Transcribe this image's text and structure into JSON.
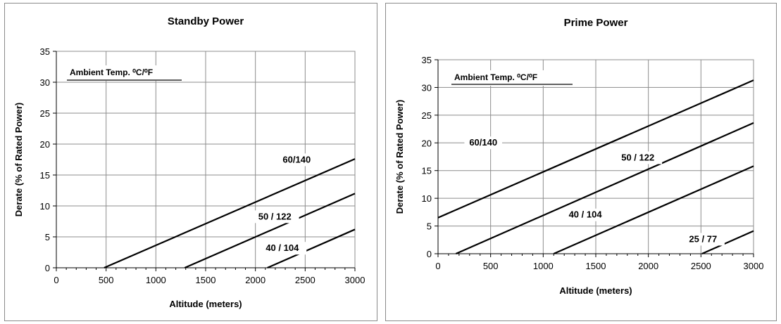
{
  "chart_data": [
    {
      "type": "line",
      "title": "Standby Power",
      "xlabel": "Altitude (meters)",
      "ylabel": "Derate (% of Rated Power)",
      "xlim": [
        0,
        3000
      ],
      "ylim": [
        0,
        35
      ],
      "x_ticks": [
        0,
        500,
        1000,
        1500,
        2000,
        2500,
        3000
      ],
      "y_ticks": [
        0,
        5,
        10,
        15,
        20,
        25,
        30,
        35
      ],
      "grid": true,
      "legend_title": "Ambient Temp. ⁰C/⁰F",
      "series": [
        {
          "name": "60/140",
          "x": [
            480,
            3000
          ],
          "y": [
            0,
            17.6
          ]
        },
        {
          "name": "50 / 122",
          "x": [
            1290,
            3000
          ],
          "y": [
            0,
            12.0
          ]
        },
        {
          "name": "40 / 104",
          "x": [
            2120,
            3000
          ],
          "y": [
            0,
            6.2
          ]
        }
      ]
    },
    {
      "type": "line",
      "title": "Prime Power",
      "xlabel": "Altitude (meters)",
      "ylabel": "Derate (% of Rated Power)",
      "xlim": [
        0,
        3000
      ],
      "ylim": [
        0,
        35
      ],
      "x_ticks": [
        0,
        500,
        1000,
        1500,
        2000,
        2500,
        3000
      ],
      "y_ticks": [
        0,
        5,
        10,
        15,
        20,
        25,
        30,
        35
      ],
      "grid": true,
      "legend_title": "Ambient Temp. ⁰C/⁰F",
      "series": [
        {
          "name": "60/140",
          "x": [
            0,
            3000
          ],
          "y": [
            6.5,
            31.3
          ]
        },
        {
          "name": "50 / 122",
          "x": [
            170,
            3000
          ],
          "y": [
            0,
            23.6
          ]
        },
        {
          "name": "40 / 104",
          "x": [
            1100,
            3000
          ],
          "y": [
            0,
            15.8
          ]
        },
        {
          "name": "25 / 77",
          "x": [
            2510,
            3000
          ],
          "y": [
            0,
            4.1
          ]
        }
      ]
    }
  ]
}
